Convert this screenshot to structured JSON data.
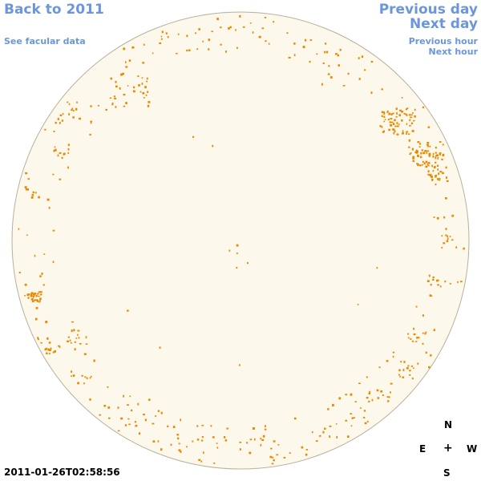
{
  "nav": {
    "back_label": "Back to 2011",
    "facular_label": "See facular data",
    "prev_day_label": "Previous day",
    "next_day_label": "Next day",
    "prev_hour_label": "Previous hour",
    "next_hour_label": "Next hour"
  },
  "compass": {
    "north": "N",
    "east": "E",
    "center": "+",
    "west": "W",
    "south": "S"
  },
  "timestamp": "2011-01-26T02:58:56",
  "colors": {
    "link": "#6b96dc",
    "disk_fill": "#fdf8ec",
    "disk_border": "#b9b09c",
    "feature": "#e88a00"
  },
  "icons": [
    "compass-rose-icon"
  ]
}
